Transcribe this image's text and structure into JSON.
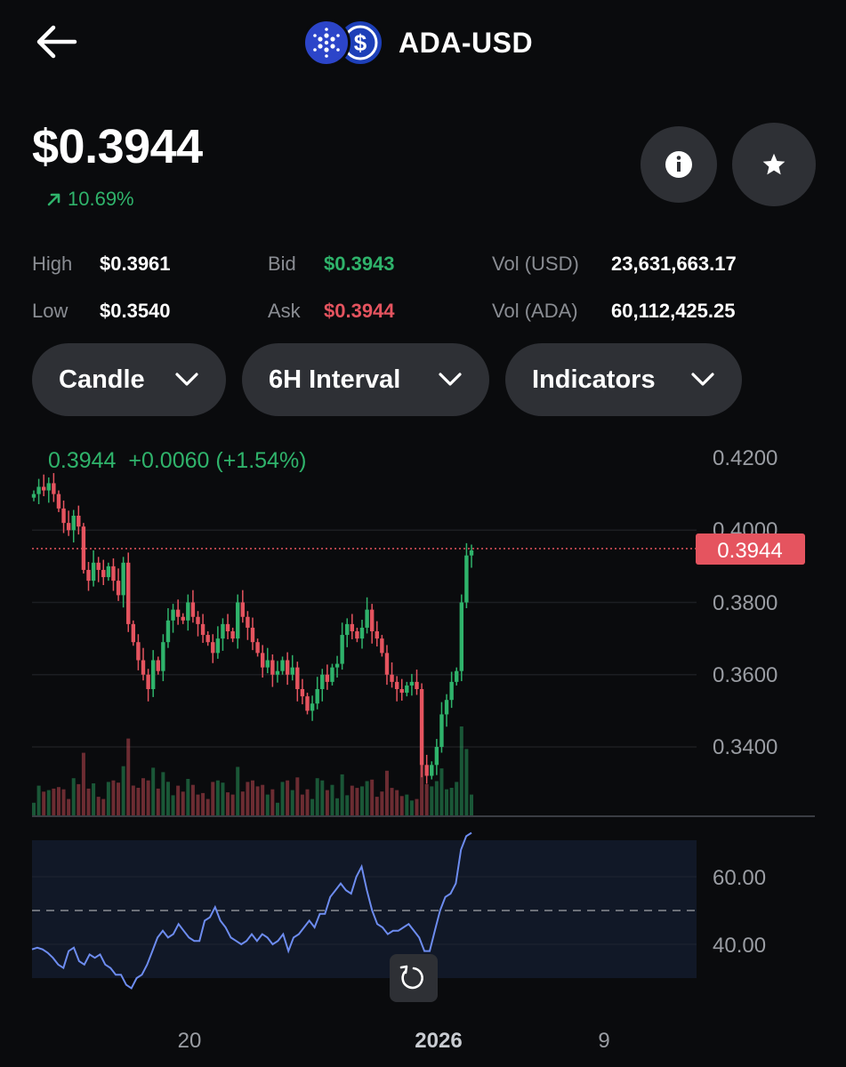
{
  "header": {
    "pair": "ADA-USD",
    "back_icon": "arrow-left-icon",
    "base_coin_icon": "cardano-icon",
    "quote_coin_icon": "usd-coin-icon"
  },
  "price": {
    "value": "$0.3944",
    "change": "10.69%",
    "change_direction": "up",
    "change_color": "#2fb36b"
  },
  "stats": {
    "high_label": "High",
    "high": "$0.3961",
    "low_label": "Low",
    "low": "$0.3540",
    "bid_label": "Bid",
    "bid": "$0.3943",
    "ask_label": "Ask",
    "ask": "$0.3944",
    "vol_usd_label": "Vol (USD)",
    "vol_usd": "23,631,663.17",
    "vol_ada_label": "Vol (ADA)",
    "vol_ada": "60,112,425.25"
  },
  "controls": {
    "chart_type": "Candle",
    "interval": "6H Interval",
    "indicators": "Indicators"
  },
  "colors": {
    "up": "#2fb36b",
    "down": "#e5545f",
    "rsi": "#6d8cf0",
    "background": "#0a0b0d"
  },
  "chart_data": [
    {
      "type": "candlestick",
      "header_text": "0.3944  +0.0060 (+1.54%)",
      "current_price_label": "0.3944",
      "ylim": [
        0.322,
        0.425
      ],
      "y_ticks": [
        "0.4200",
        "0.4000",
        "0.3800",
        "0.3600",
        "0.3400"
      ],
      "x_ticks": [
        "20",
        "2026",
        "9"
      ],
      "close_series": [
        0.41,
        0.412,
        0.411,
        0.413,
        0.41,
        0.406,
        0.402,
        0.4,
        0.404,
        0.401,
        0.389,
        0.386,
        0.391,
        0.389,
        0.387,
        0.39,
        0.386,
        0.382,
        0.391,
        0.374,
        0.369,
        0.364,
        0.36,
        0.356,
        0.364,
        0.361,
        0.369,
        0.375,
        0.378,
        0.376,
        0.375,
        0.38,
        0.376,
        0.374,
        0.371,
        0.369,
        0.366,
        0.37,
        0.374,
        0.372,
        0.37,
        0.38,
        0.376,
        0.373,
        0.369,
        0.366,
        0.362,
        0.364,
        0.36,
        0.361,
        0.364,
        0.36,
        0.362,
        0.356,
        0.354,
        0.35,
        0.352,
        0.356,
        0.36,
        0.358,
        0.362,
        0.363,
        0.371,
        0.374,
        0.372,
        0.37,
        0.373,
        0.378,
        0.372,
        0.37,
        0.366,
        0.36,
        0.358,
        0.356,
        0.355,
        0.357,
        0.358,
        0.356,
        0.335,
        0.332,
        0.335,
        0.34,
        0.349,
        0.353,
        0.358,
        0.361,
        0.38,
        0.393,
        0.3944
      ]
    },
    {
      "type": "line",
      "name": "RSI",
      "ylim": [
        26,
        74
      ],
      "y_ticks": [
        "60.00",
        "40.00"
      ],
      "midline": 50,
      "values": [
        38.5,
        39,
        38.5,
        37.5,
        36,
        34,
        33,
        38,
        39,
        35,
        34,
        37,
        36,
        37,
        34,
        33,
        31,
        31,
        28,
        27,
        30,
        31,
        34,
        38,
        42,
        44,
        42,
        43,
        46,
        44,
        42,
        41,
        41,
        47,
        48,
        51,
        47,
        45,
        42,
        41,
        40,
        41,
        43,
        41,
        43,
        42,
        40,
        41,
        43,
        38,
        42,
        43,
        45,
        47,
        45,
        49,
        49,
        54,
        56,
        58,
        56,
        55,
        60,
        63,
        56,
        50,
        46,
        45,
        43,
        44,
        44,
        45,
        46,
        44,
        42,
        38,
        38,
        44,
        50,
        54,
        55,
        58,
        68,
        72,
        73
      ]
    }
  ]
}
